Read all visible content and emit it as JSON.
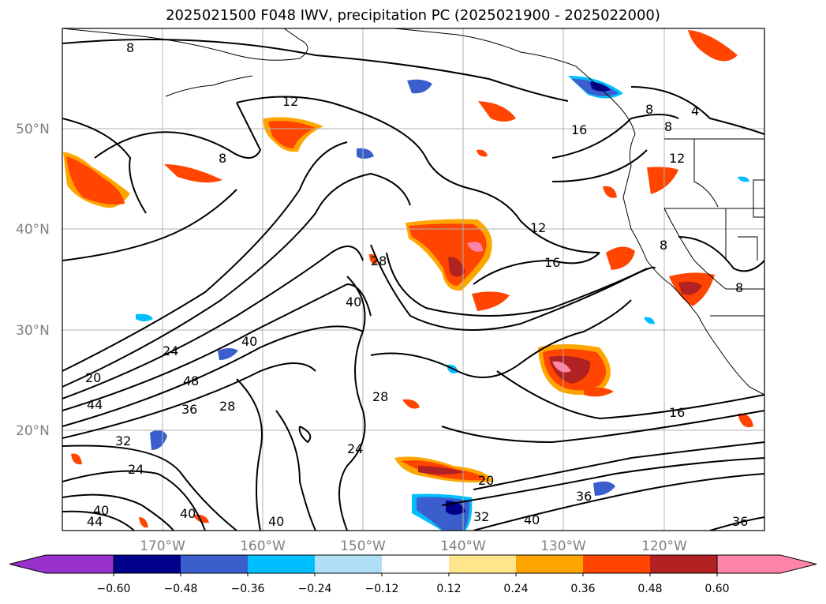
{
  "title": "2025021500 F048 IWV, precipitation PC (2025021900 - 2025022000)",
  "lat_labels": [
    "50°N",
    "40°N",
    "30°N",
    "20°N"
  ],
  "lon_labels": [
    "170°W",
    "160°W",
    "150°W",
    "140°W",
    "130°W",
    "120°W"
  ],
  "colorbar": {
    "colors": [
      "#9932cc",
      "#00008b",
      "#3a5fcd",
      "#00bfff",
      "#b0e0f5",
      "#ffffff",
      "#ffe68c",
      "#ffa500",
      "#ff4500",
      "#b22222",
      "#ff85a8"
    ],
    "tick_labels": [
      "−0.60",
      "−0.48",
      "−0.36",
      "−0.24",
      "−0.12",
      "0.12",
      "0.24",
      "0.36",
      "0.48",
      "0.60"
    ]
  },
  "contour_labels": [
    "8",
    "12",
    "8",
    "12",
    "16",
    "8",
    "4",
    "8",
    "12",
    "8",
    "8",
    "28",
    "40",
    "16",
    "24",
    "40",
    "20",
    "48",
    "44",
    "36",
    "28",
    "28",
    "32",
    "24",
    "24",
    "16",
    "36",
    "20",
    "32",
    "40",
    "40",
    "40",
    "44",
    "36",
    "40"
  ]
}
